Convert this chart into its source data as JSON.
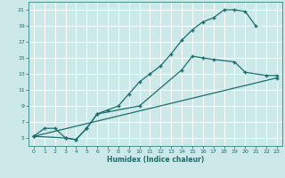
{
  "xlabel": "Humidex (Indice chaleur)",
  "bg_color": "#cce8e8",
  "line_color": "#1a6e6e",
  "grid_color": "#ffffff",
  "line0_x": [
    0,
    1,
    2,
    3,
    4,
    5,
    6,
    7,
    8,
    9,
    10,
    11,
    12,
    13,
    14,
    15,
    16,
    17,
    18,
    19,
    20,
    21
  ],
  "line0_y": [
    5.2,
    6.2,
    6.2,
    5.0,
    4.8,
    6.2,
    8.0,
    8.5,
    9.0,
    10.5,
    12.0,
    13.0,
    14.0,
    15.5,
    17.2,
    18.5,
    19.5,
    20.0,
    21.0,
    21.0,
    20.8,
    19.0
  ],
  "line1_x": [
    0,
    3,
    4,
    5,
    6,
    10,
    14,
    15,
    16,
    17,
    19,
    20,
    22,
    23
  ],
  "line1_y": [
    5.2,
    5.0,
    4.8,
    6.2,
    8.0,
    9.0,
    13.5,
    15.2,
    15.0,
    14.8,
    14.5,
    13.2,
    12.8,
    12.8
  ],
  "line2_x": [
    0,
    23
  ],
  "line2_y": [
    5.2,
    12.5
  ],
  "xlim": [
    -0.5,
    23.5
  ],
  "ylim": [
    4.0,
    22.0
  ],
  "yticks": [
    5,
    7,
    9,
    11,
    13,
    15,
    17,
    19,
    21
  ],
  "xticks": [
    0,
    1,
    2,
    3,
    4,
    5,
    6,
    7,
    8,
    9,
    10,
    11,
    12,
    13,
    14,
    15,
    16,
    17,
    18,
    19,
    20,
    21,
    22,
    23
  ]
}
